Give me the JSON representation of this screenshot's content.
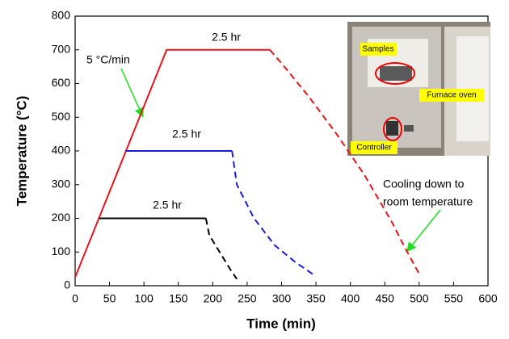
{
  "chart_data": {
    "type": "line",
    "xlabel": "Time (min)",
    "ylabel": "Temperature (°C)",
    "xlim": [
      0,
      600
    ],
    "ylim": [
      0,
      800
    ],
    "xticks": [
      0,
      50,
      100,
      150,
      200,
      250,
      300,
      350,
      400,
      450,
      500,
      550,
      600
    ],
    "yticks": [
      0,
      100,
      200,
      300,
      400,
      500,
      600,
      700,
      800
    ],
    "series": [
      {
        "color": "#e8141b",
        "dashed": false,
        "x": [
          0,
          133,
          283
        ],
        "values": [
          25,
          700,
          700
        ]
      },
      {
        "color": "#e8141b",
        "dashed": true,
        "x": [
          283,
          300,
          340,
          380,
          420,
          460,
          480,
          500
        ],
        "values": [
          700,
          660,
          560,
          450,
          330,
          190,
          110,
          35
        ]
      },
      {
        "color": "#1a1ae0",
        "dashed": false,
        "x": [
          73,
          228
        ],
        "values": [
          400,
          400
        ]
      },
      {
        "color": "#1a1ae0",
        "dashed": true,
        "x": [
          228,
          235,
          260,
          290,
          320,
          345
        ],
        "values": [
          400,
          300,
          200,
          120,
          70,
          35
        ]
      },
      {
        "color": "#000000",
        "dashed": false,
        "x": [
          35,
          190
        ],
        "values": [
          200,
          200
        ]
      },
      {
        "color": "#000000",
        "dashed": true,
        "x": [
          190,
          195,
          210,
          225,
          235
        ],
        "values": [
          200,
          150,
          100,
          50,
          20
        ]
      }
    ],
    "annotations": [
      "5 °C/min",
      "2.5 hr",
      "2.5 hr",
      "2.5 hr",
      "Cooling down to",
      "room temperature"
    ],
    "inset_labels": [
      "Samples",
      "Furnace oven",
      "Controller"
    ]
  }
}
